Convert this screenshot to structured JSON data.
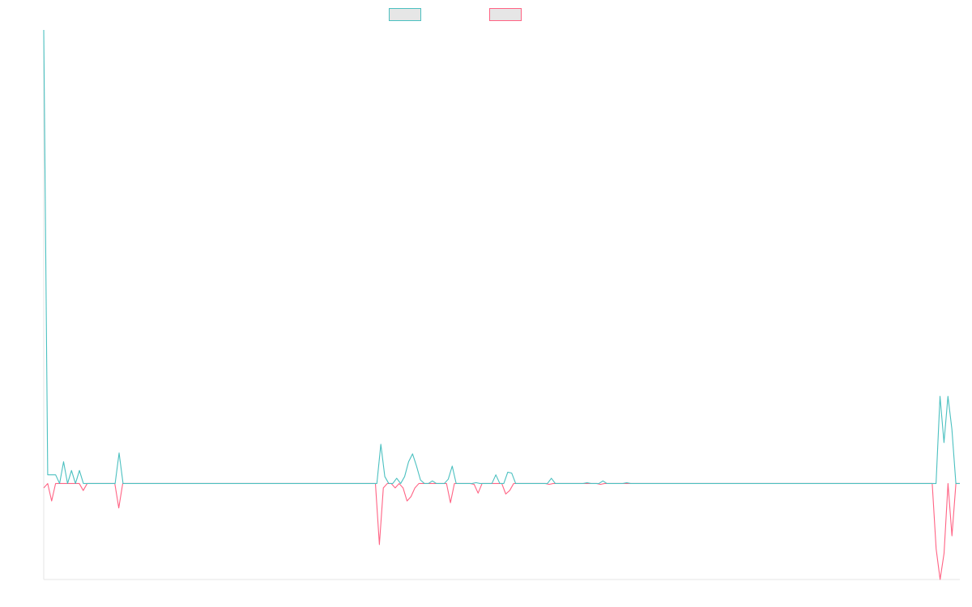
{
  "chart_data": {
    "type": "line",
    "title": "",
    "xlabel": "",
    "ylabel": "",
    "grid": false,
    "legend_placement": "top-center",
    "ylim": [
      -1.1,
      5.2
    ],
    "series": [
      {
        "color": "#4bc0c0",
        "values": [
          5.2,
          0.1,
          0.1,
          0.1,
          0,
          0.25,
          0,
          0.15,
          0,
          0.15,
          0,
          0,
          0,
          0,
          0,
          0,
          0,
          0,
          0,
          0.35,
          0,
          0,
          0,
          0,
          0,
          0,
          0,
          0,
          0,
          0,
          0,
          0,
          0,
          0,
          0,
          0,
          0,
          0,
          0,
          0,
          0,
          0,
          0,
          0,
          0,
          0,
          0,
          0,
          0,
          0,
          0,
          0,
          0,
          0,
          0,
          0,
          0,
          0,
          0,
          0,
          0,
          0,
          0,
          0,
          0,
          0,
          0,
          0,
          0,
          0,
          0,
          0,
          0,
          0,
          0,
          0,
          0,
          0,
          0,
          0,
          0,
          0,
          0,
          0,
          0,
          0.45,
          0.08,
          0,
          0,
          0.06,
          0,
          0.08,
          0.25,
          0.34,
          0.2,
          0.04,
          0,
          0,
          0.03,
          0,
          0,
          0,
          0.05,
          0.2,
          0,
          0,
          0,
          0,
          0,
          0.01,
          0,
          0,
          0,
          0,
          0.1,
          0,
          0,
          0.13,
          0.12,
          0,
          0,
          0,
          0,
          0,
          0,
          0,
          0,
          0,
          0.06,
          0,
          0,
          0,
          0,
          0,
          0,
          0,
          0,
          0.01,
          0,
          0,
          0,
          0.03,
          0,
          0,
          0,
          0,
          0,
          0.01,
          0,
          0,
          0,
          0,
          0,
          0,
          0,
          0,
          0,
          0,
          0,
          0,
          0,
          0,
          0,
          0,
          0,
          0,
          0,
          0,
          0,
          0,
          0,
          0,
          0,
          0,
          0,
          0,
          0,
          0,
          0,
          0,
          0,
          0,
          0,
          0,
          0,
          0,
          0,
          0,
          0,
          0,
          0,
          0,
          0,
          0,
          0,
          0,
          0,
          0,
          0,
          0,
          0,
          0,
          0,
          0,
          0,
          0,
          0,
          0,
          0,
          0,
          0,
          0,
          0,
          0,
          0,
          0,
          0,
          0,
          0,
          0,
          0,
          0,
          0,
          0,
          0,
          0,
          1.0,
          0.47,
          1.0,
          0.62,
          0,
          0
        ]
      },
      {
        "color": "#ff6384",
        "values": [
          -0.05,
          0,
          -0.2,
          0,
          0,
          0,
          0,
          0,
          0,
          0,
          -0.08,
          0,
          0,
          0,
          0,
          0,
          0,
          0,
          0,
          -0.28,
          0,
          0,
          0,
          0,
          0,
          0,
          0,
          0,
          0,
          0,
          0,
          0,
          0,
          0,
          0,
          0,
          0,
          0,
          0,
          0,
          0,
          0,
          0,
          0,
          0,
          0,
          0,
          0,
          0,
          0,
          0,
          0,
          0,
          0,
          0,
          0,
          0,
          0,
          0,
          0,
          0,
          0,
          0,
          0,
          0,
          0,
          0,
          0,
          0,
          0,
          0,
          0,
          0,
          0,
          0,
          0,
          0,
          0,
          0,
          0,
          0,
          0,
          0,
          0,
          0,
          -0.7,
          -0.05,
          0,
          0,
          -0.05,
          0,
          -0.05,
          -0.2,
          -0.15,
          -0.05,
          0,
          0,
          0,
          0,
          0,
          0,
          0,
          0,
          -0.22,
          0,
          0,
          0,
          0,
          0,
          -0.01,
          -0.11,
          0,
          0,
          0,
          0,
          0,
          0,
          -0.12,
          -0.08,
          0,
          0,
          0,
          0,
          0,
          0,
          0,
          0,
          0,
          -0.01,
          0,
          0,
          0,
          0,
          0,
          0,
          0,
          0,
          0,
          0,
          0,
          0,
          -0.01,
          0,
          0,
          0,
          0,
          0,
          0,
          0,
          0,
          0,
          0,
          0,
          0,
          0,
          0,
          0,
          0,
          0,
          0,
          0,
          0,
          0,
          0,
          0,
          0,
          0,
          0,
          0,
          0,
          0,
          0,
          0,
          0,
          0,
          0,
          0,
          0,
          0,
          0,
          0,
          0,
          0,
          0,
          0,
          0,
          0,
          0,
          0,
          0,
          0,
          0,
          0,
          0,
          0,
          0,
          0,
          0,
          0,
          0,
          0,
          0,
          0,
          0,
          0,
          0,
          0,
          0,
          0,
          0,
          0,
          0,
          0,
          0,
          0,
          0,
          0,
          0,
          0,
          0,
          0,
          0,
          0,
          0,
          0,
          0,
          -0.75,
          -1.1,
          -0.8,
          0,
          -0.6,
          0,
          0
        ]
      }
    ]
  }
}
